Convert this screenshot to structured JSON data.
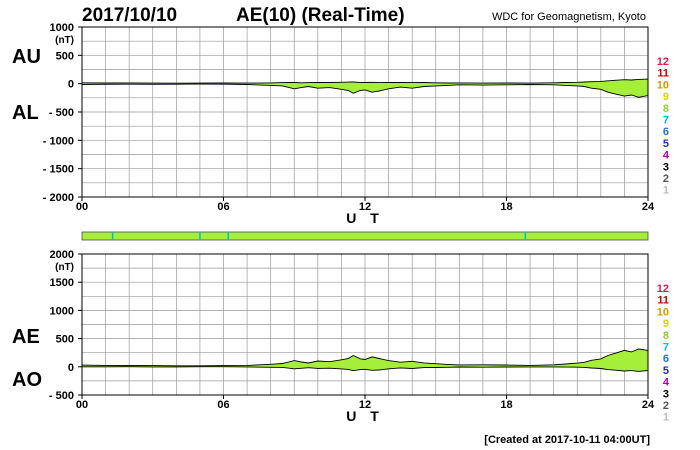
{
  "header": {
    "date": "2017/10/10",
    "title": "AE(10) (Real-Time)",
    "org": "WDC for Geomagnetism, Kyoto"
  },
  "footer": {
    "created": "[Created at 2017-10-11 04:00UT]"
  },
  "station_count_labels": [
    "12",
    "11",
    "10",
    "9",
    "8",
    "7",
    "6",
    "5",
    "4",
    "3",
    "2",
    "1"
  ],
  "station_count_colors": [
    "#e6194b",
    "#cc0000",
    "#e69500",
    "#d8d800",
    "#9acd32",
    "#00bcd4",
    "#1e74d6",
    "#2a2ab8",
    "#b000b0",
    "#000000",
    "#555555",
    "#bbbbbb"
  ],
  "colors": {
    "fill": "#a5ef3a",
    "line": "#000000",
    "grid": "#9a9a9a",
    "bar": "#a5ef3a",
    "bar_mark": "#00bcd4"
  },
  "availability_bar": {
    "coverage": 1.0,
    "marks_hours": [
      1.3,
      5.0,
      6.2,
      18.8
    ]
  },
  "chart_data": [
    {
      "type": "area",
      "name": "AU/AL",
      "labels": {
        "upper": "AU",
        "lower": "AL"
      },
      "x_ticks": [
        "00",
        "06",
        "12",
        "18",
        "24"
      ],
      "xlabel": "U T",
      "xlim": [
        0,
        24
      ],
      "ylim": [
        -2000,
        1000
      ],
      "y_ticks": [
        1000,
        500,
        0,
        -500,
        -1000,
        -1500,
        -2000
      ],
      "y_tick_labels": [
        "1000",
        "500",
        "0",
        "- 500",
        "- 1000",
        "- 1500",
        "- 2000"
      ],
      "unit": "(nT)",
      "grid": true,
      "x": [
        0,
        1,
        2,
        3,
        4,
        5,
        6,
        7,
        8,
        8.5,
        9,
        9.3,
        9.6,
        10,
        10.5,
        11,
        11.3,
        11.5,
        11.8,
        12,
        12.3,
        12.6,
        13,
        13.5,
        14,
        14.5,
        15,
        15.5,
        16,
        17,
        18,
        19,
        20,
        20.5,
        21,
        21.3,
        21.6,
        22,
        22.3,
        22.6,
        23,
        23.3,
        23.6,
        24
      ],
      "series": [
        {
          "key": "AU",
          "values": [
            15,
            12,
            14,
            10,
            8,
            10,
            12,
            10,
            14,
            18,
            20,
            15,
            18,
            22,
            20,
            25,
            28,
            30,
            22,
            20,
            25,
            18,
            20,
            22,
            18,
            20,
            15,
            12,
            14,
            10,
            12,
            10,
            15,
            20,
            25,
            30,
            35,
            40,
            50,
            60,
            70,
            65,
            75,
            80
          ]
        },
        {
          "key": "AL",
          "values": [
            -15,
            -12,
            -10,
            -12,
            -10,
            -8,
            -10,
            -15,
            -30,
            -40,
            -90,
            -70,
            -50,
            -80,
            -70,
            -100,
            -120,
            -170,
            -120,
            -110,
            -150,
            -130,
            -90,
            -60,
            -80,
            -50,
            -40,
            -30,
            -20,
            -25,
            -20,
            -15,
            -20,
            -30,
            -40,
            -50,
            -80,
            -100,
            -150,
            -180,
            -220,
            -200,
            -240,
            -210
          ]
        }
      ]
    },
    {
      "type": "area",
      "name": "AE/AO",
      "labels": {
        "upper": "AE",
        "lower": "AO"
      },
      "x_ticks": [
        "00",
        "06",
        "12",
        "18",
        "24"
      ],
      "xlabel": "U T",
      "xlim": [
        0,
        24
      ],
      "ylim": [
        -500,
        2000
      ],
      "y_ticks": [
        2000,
        1500,
        1000,
        500,
        0,
        -500
      ],
      "y_tick_labels": [
        "2000",
        "1500",
        "1000",
        "500",
        "0",
        "- 500"
      ],
      "unit": "(nT)",
      "grid": true,
      "x": [
        0,
        1,
        2,
        3,
        4,
        5,
        6,
        7,
        8,
        8.5,
        9,
        9.3,
        9.6,
        10,
        10.5,
        11,
        11.3,
        11.5,
        11.8,
        12,
        12.3,
        12.6,
        13,
        13.5,
        14,
        14.5,
        15,
        15.5,
        16,
        17,
        18,
        19,
        20,
        20.5,
        21,
        21.3,
        21.6,
        22,
        22.3,
        22.6,
        23,
        23.3,
        23.6,
        24
      ],
      "series": [
        {
          "key": "AE",
          "values": [
            30,
            24,
            24,
            22,
            18,
            18,
            22,
            25,
            44,
            58,
            110,
            85,
            68,
            102,
            90,
            125,
            148,
            200,
            142,
            130,
            175,
            148,
            110,
            82,
            98,
            70,
            55,
            42,
            34,
            35,
            32,
            25,
            35,
            50,
            65,
            80,
            115,
            140,
            200,
            240,
            290,
            265,
            315,
            290
          ]
        },
        {
          "key": "AO",
          "values": [
            0,
            0,
            2,
            -1,
            -1,
            1,
            1,
            -2,
            -8,
            -11,
            -35,
            -27,
            -16,
            -29,
            -25,
            -37,
            -46,
            -70,
            -49,
            -45,
            -62,
            -56,
            -35,
            -19,
            -31,
            -15,
            -12,
            -9,
            -3,
            -7,
            -4,
            -2,
            -2,
            -5,
            -7,
            -10,
            -22,
            -30,
            -50,
            -60,
            -75,
            -67,
            -82,
            -65
          ]
        }
      ]
    }
  ]
}
